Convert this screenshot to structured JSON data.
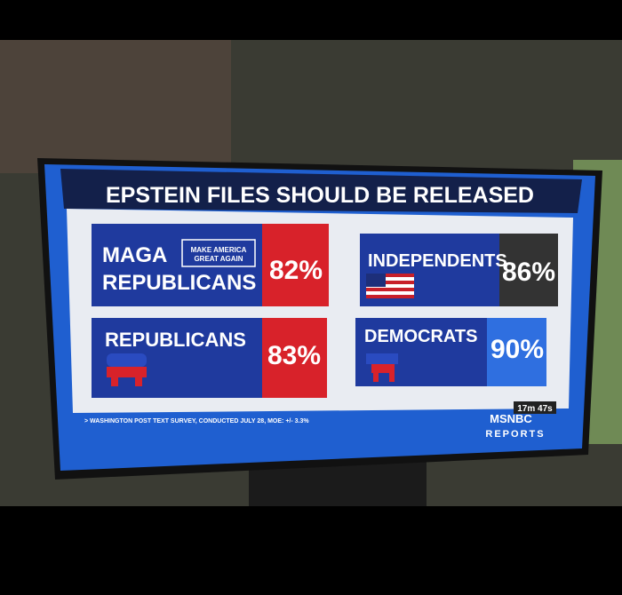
{
  "header": {
    "title": "EPSTEIN FILES SHOULD BE RELEASED"
  },
  "panels": [
    {
      "label": [
        "MAGA",
        "REPUBLICANS"
      ],
      "badge": [
        "MAKE AMERICA",
        "GREAT AGAIN"
      ],
      "value": "82%"
    },
    {
      "label": [
        "REPUBLICANS"
      ],
      "value": "83%"
    },
    {
      "label": [
        "INDEPENDENTS"
      ],
      "value": "86%"
    },
    {
      "label": [
        "DEMOCRATS"
      ],
      "value": "90%"
    }
  ],
  "footer": {
    "source": "> WASHINGTON POST TEXT SURVEY, CONDUCTED JULY 28, MOE: +/- 3.3%",
    "timer": "17m 47s",
    "network": "MSNBC",
    "show": "REPORTS"
  }
}
